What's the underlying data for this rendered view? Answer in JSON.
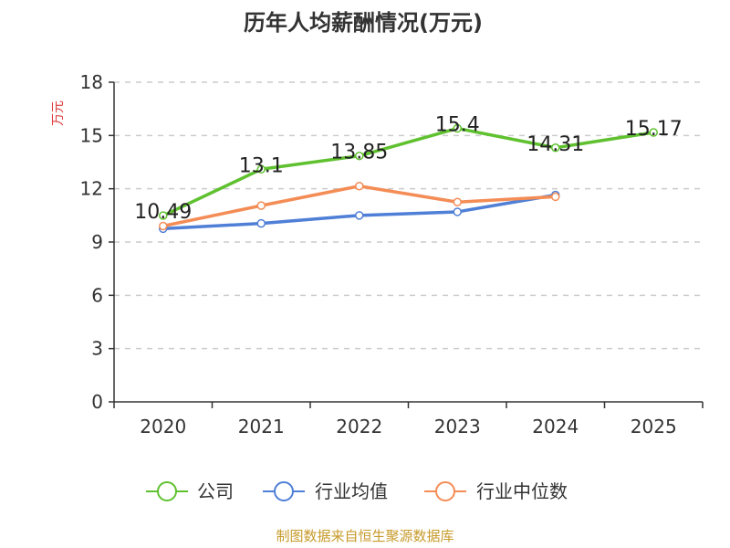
{
  "chart_data": {
    "type": "line",
    "title": "历年人均薪酬情况(万元)",
    "ylabel": "万元",
    "xlabel": "",
    "x": [
      "2020",
      "2021",
      "2022",
      "2023",
      "2024",
      "2025"
    ],
    "ylim": [
      0,
      18
    ],
    "yticks": [
      "0",
      "3",
      "6",
      "9",
      "12",
      "15",
      "18"
    ],
    "grid": "horizontal dashed",
    "legend_position": "bottom-center",
    "series": [
      {
        "name": "公司",
        "color": "#5fc12f",
        "values": [
          10.49,
          13.1,
          13.85,
          15.4,
          14.31,
          15.17
        ],
        "labels": [
          "10.49",
          "13.1",
          "13.85",
          "15.4",
          "14.31",
          "15.17"
        ]
      },
      {
        "name": "行业均值",
        "color": "#4f7fd6",
        "values": [
          9.75,
          10.05,
          10.5,
          10.7,
          11.65,
          null
        ]
      },
      {
        "name": "行业中位数",
        "color": "#f48c55",
        "values": [
          9.9,
          11.05,
          12.15,
          11.25,
          11.55,
          null
        ]
      }
    ],
    "ylabel_color": "#e03c3c",
    "source_note": "制图数据来自恒生聚源数据库",
    "source_color": "#c79a2a"
  }
}
